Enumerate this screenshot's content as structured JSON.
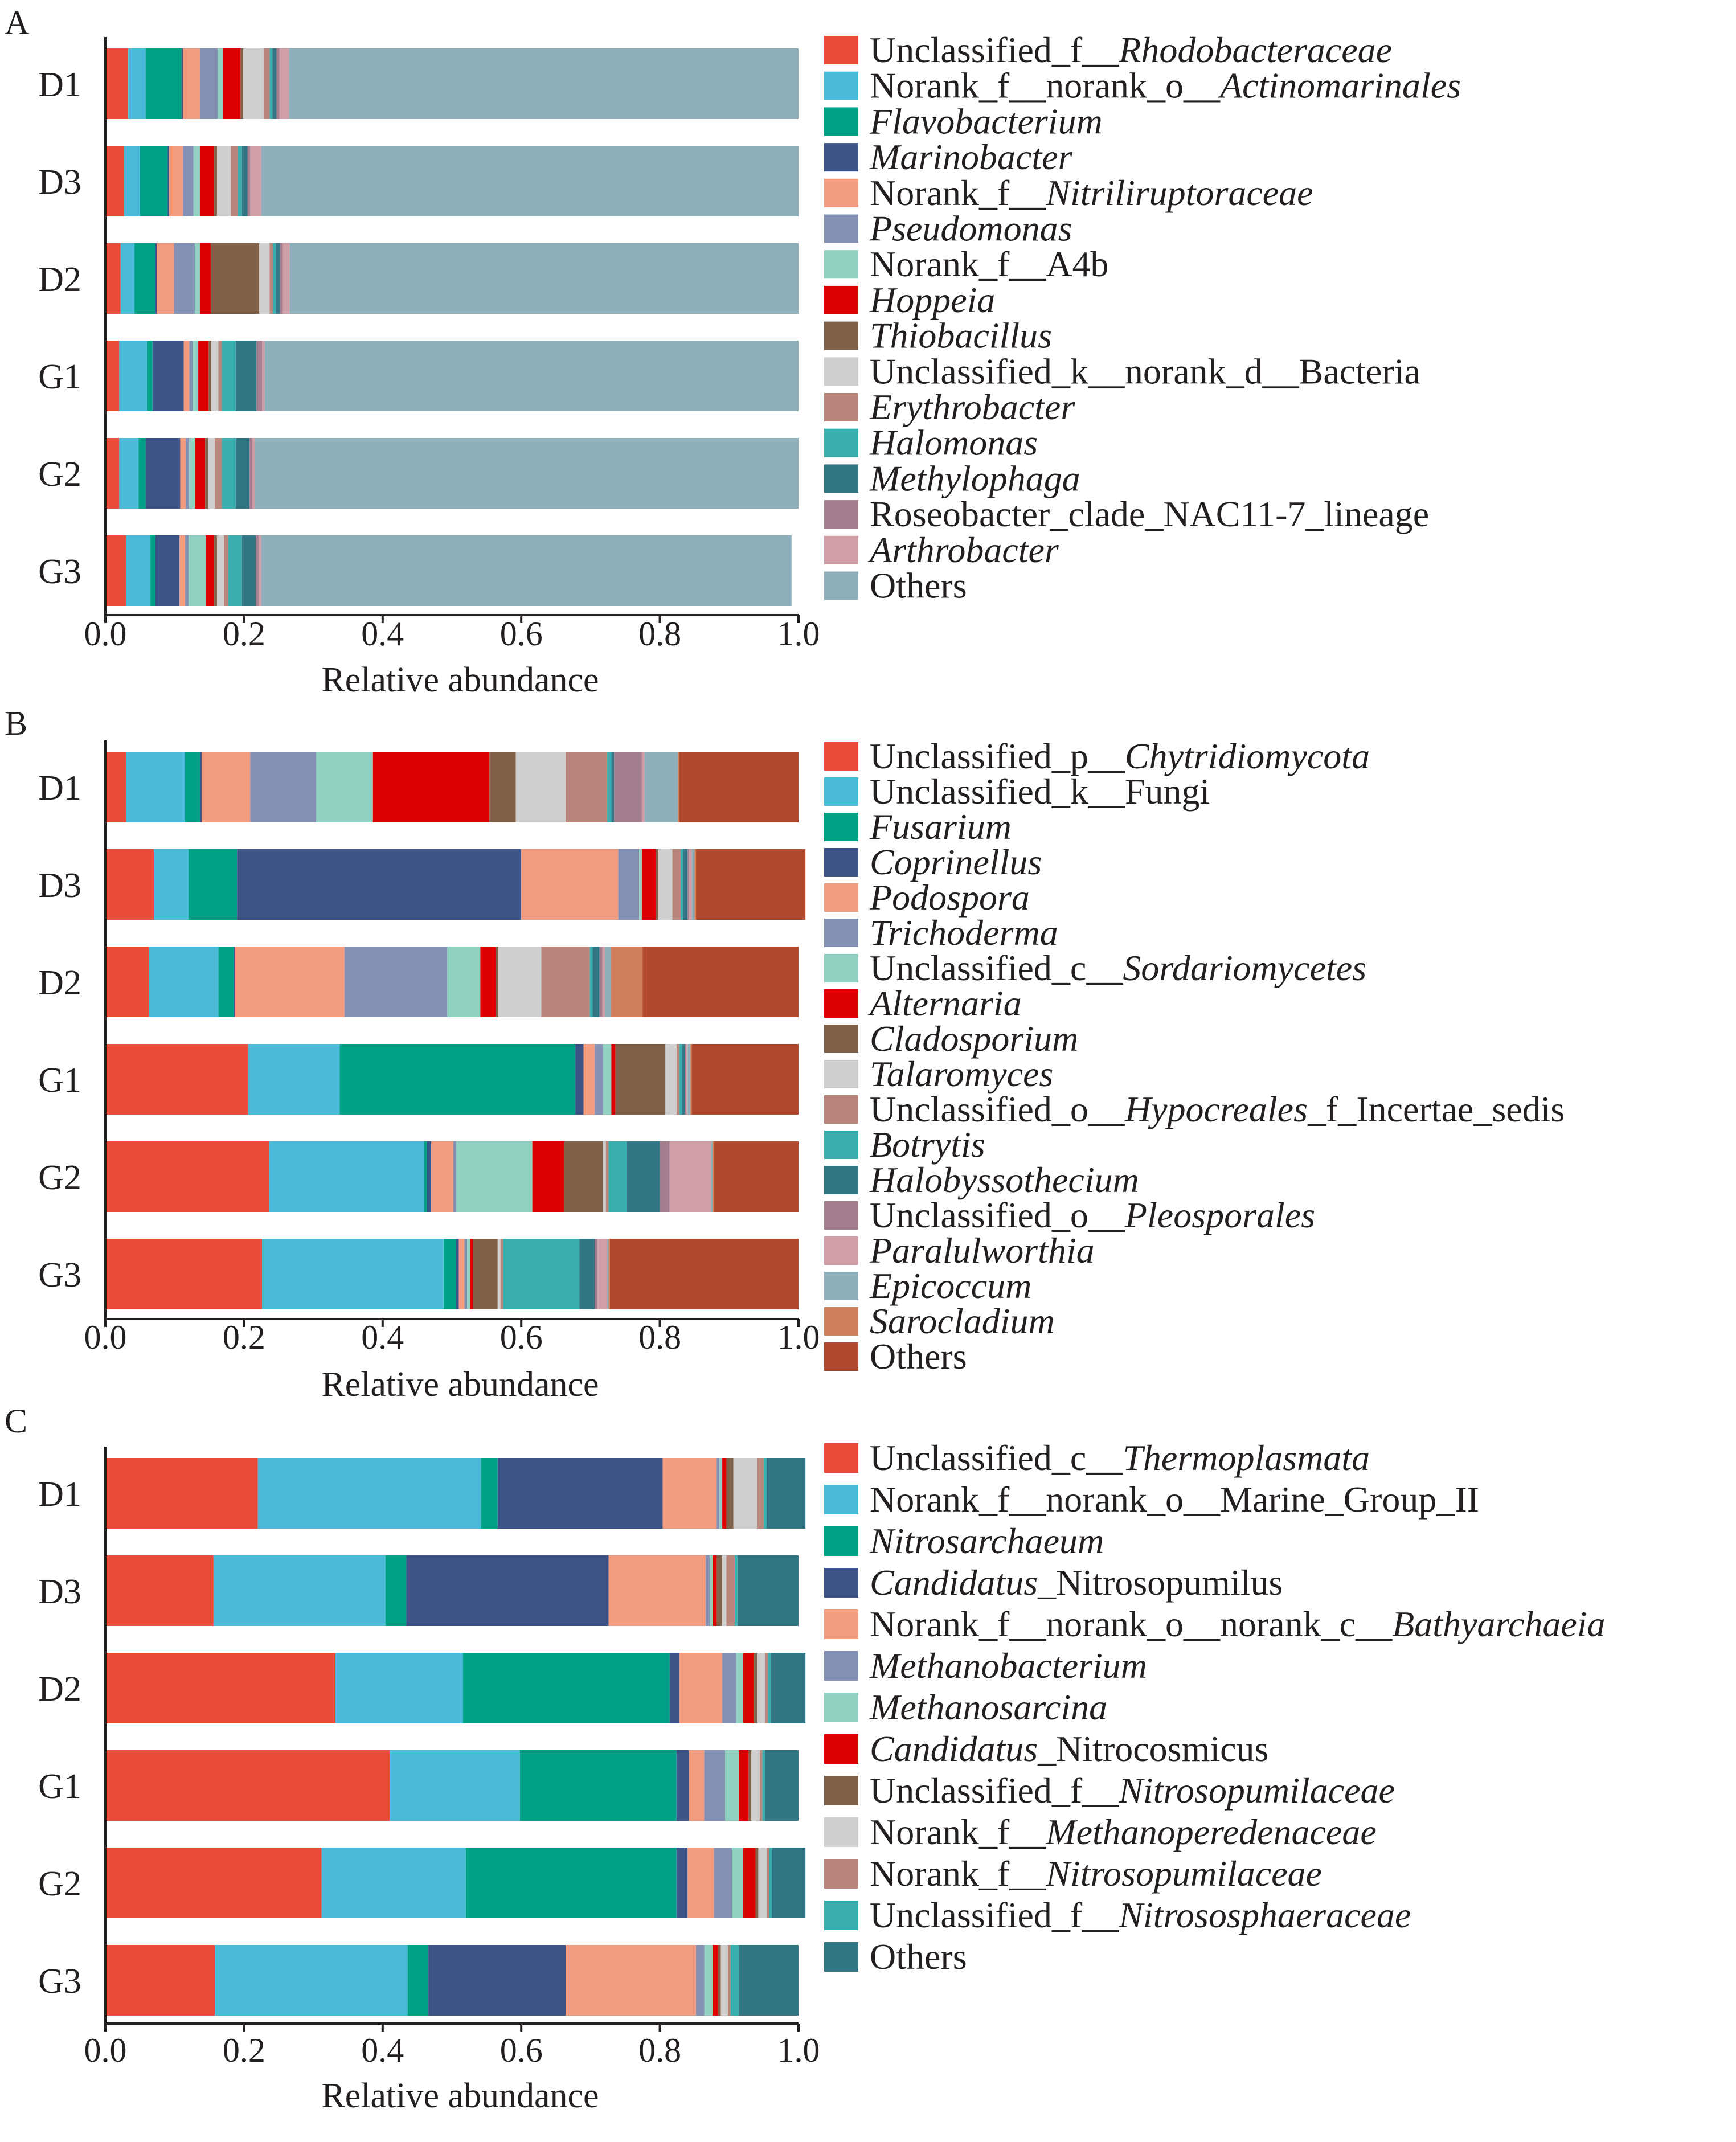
{
  "figure": {
    "xlabel": "Relative abundance",
    "ticks": [
      "0.0",
      "0.2",
      "0.4",
      "0.6",
      "0.8",
      "1.0"
    ]
  },
  "chart_data": [
    {
      "panel": "A",
      "type": "bar",
      "orientation": "horizontal",
      "stacked": true,
      "xlabel": "Relative abundance",
      "xlim": [
        0,
        1
      ],
      "categories": [
        "D1",
        "D3",
        "D2",
        "G1",
        "G2",
        "G3"
      ],
      "legend_position": "right",
      "series": [
        {
          "name": [
            [
              "Unclassified_f__",
              false
            ],
            [
              "Rhodobacteraceae",
              true
            ]
          ],
          "color": "#e84b37",
          "values": [
            0.033,
            0.027,
            0.022,
            0.02,
            0.02,
            0.03
          ]
        },
        {
          "name": [
            [
              "Norank_f__norank_o__",
              false
            ],
            [
              "Actinomarinales",
              true
            ]
          ],
          "color": "#4bbad8",
          "values": [
            0.025,
            0.023,
            0.02,
            0.04,
            0.028,
            0.035
          ]
        },
        {
          "name": [
            [
              "Flavobacterium",
              true
            ]
          ],
          "color": "#00a087",
          "values": [
            0.052,
            0.04,
            0.03,
            0.008,
            0.01,
            0.007
          ]
        },
        {
          "name": [
            [
              "Marinobacter",
              true
            ]
          ],
          "color": "#3c5488",
          "values": [
            0.002,
            0.002,
            0.002,
            0.045,
            0.05,
            0.035
          ]
        },
        {
          "name": [
            [
              "Norank_f__",
              false
            ],
            [
              "Nitriliruptoraceae",
              true
            ]
          ],
          "color": "#f39b7f",
          "values": [
            0.025,
            0.02,
            0.025,
            0.008,
            0.008,
            0.008
          ]
        },
        {
          "name": [
            [
              "Pseudomonas",
              true
            ]
          ],
          "color": "#8491b4",
          "values": [
            0.025,
            0.015,
            0.03,
            0.005,
            0.005,
            0.005
          ]
        },
        {
          "name": [
            [
              "Norank_f__A4b",
              false
            ]
          ],
          "color": "#91d1c2",
          "values": [
            0.008,
            0.01,
            0.008,
            0.008,
            0.008,
            0.025
          ]
        },
        {
          "name": [
            [
              "Hoppeia",
              true
            ]
          ],
          "color": "#dc0000",
          "values": [
            0.025,
            0.02,
            0.015,
            0.015,
            0.015,
            0.012
          ]
        },
        {
          "name": [
            [
              "Thiobacillus",
              true
            ]
          ],
          "color": "#7e6148",
          "values": [
            0.004,
            0.004,
            0.07,
            0.004,
            0.004,
            0.004
          ]
        },
        {
          "name": [
            [
              "Unclassified_k__norank_d__Bacteria",
              false
            ]
          ],
          "color": "#cfcfcf",
          "values": [
            0.03,
            0.02,
            0.015,
            0.01,
            0.01,
            0.01
          ]
        },
        {
          "name": [
            [
              "Erythrobacter",
              true
            ]
          ],
          "color": "#b9867c",
          "values": [
            0.008,
            0.01,
            0.005,
            0.005,
            0.01,
            0.006
          ]
        },
        {
          "name": [
            [
              "Halomonas",
              true
            ]
          ],
          "color": "#38aeae",
          "values": [
            0.004,
            0.006,
            0.004,
            0.02,
            0.02,
            0.02
          ]
        },
        {
          "name": [
            [
              "Methylophaga",
              true
            ]
          ],
          "color": "#327685",
          "values": [
            0.006,
            0.008,
            0.006,
            0.03,
            0.02,
            0.02
          ]
        },
        {
          "name": [
            [
              "Roseobacter_clade_NAC11-7_lineage",
              false
            ]
          ],
          "color": "#a37e8f",
          "values": [
            0.004,
            0.004,
            0.004,
            0.008,
            0.004,
            0.004
          ]
        },
        {
          "name": [
            [
              "Arthrobacter",
              true
            ]
          ],
          "color": "#cf9ea6",
          "values": [
            0.014,
            0.016,
            0.01,
            0.004,
            0.004,
            0.004
          ]
        },
        {
          "name": [
            [
              "Others",
              false
            ]
          ],
          "color": "#8fb0bb",
          "values": [
            0.735,
            0.775,
            0.734,
            0.77,
            0.784,
            0.765
          ]
        }
      ]
    },
    {
      "panel": "B",
      "type": "bar",
      "orientation": "horizontal",
      "stacked": true,
      "xlabel": "Relative abundance",
      "xlim": [
        0,
        1
      ],
      "categories": [
        "D1",
        "D3",
        "D2",
        "G1",
        "G2",
        "G3"
      ],
      "legend_position": "right",
      "series": [
        {
          "name": [
            [
              "Unclassified_p__",
              false
            ],
            [
              "Chytridiomycota",
              true
            ]
          ],
          "color": "#e84b37",
          "values": [
            0.03,
            0.07,
            0.063,
            0.206,
            0.236,
            0.226
          ]
        },
        {
          "name": [
            [
              "Unclassified_k__Fungi",
              false
            ]
          ],
          "color": "#4bbad8",
          "values": [
            0.085,
            0.05,
            0.1,
            0.132,
            0.224,
            0.262
          ]
        },
        {
          "name": [
            [
              "Fusarium",
              true
            ]
          ],
          "color": "#00a087",
          "values": [
            0.022,
            0.07,
            0.022,
            0.34,
            0.004,
            0.018
          ]
        },
        {
          "name": [
            [
              "Coprinellus",
              true
            ]
          ],
          "color": "#3c5488",
          "values": [
            0.002,
            0.41,
            0.002,
            0.012,
            0.006,
            0.004
          ]
        },
        {
          "name": [
            [
              "Podospora",
              true
            ]
          ],
          "color": "#f39b7f",
          "values": [
            0.07,
            0.14,
            0.158,
            0.016,
            0.032,
            0.008
          ]
        },
        {
          "name": [
            [
              "Trichoderma",
              true
            ]
          ],
          "color": "#8491b4",
          "values": [
            0.095,
            0.03,
            0.148,
            0.012,
            0.004,
            0.004
          ]
        },
        {
          "name": [
            [
              "Unclassified_c__",
              false
            ],
            [
              "Sordariomycetes",
              true
            ]
          ],
          "color": "#91d1c2",
          "values": [
            0.082,
            0.004,
            0.048,
            0.012,
            0.11,
            0.004
          ]
        },
        {
          "name": [
            [
              "Alternaria",
              true
            ]
          ],
          "color": "#dc0000",
          "values": [
            0.168,
            0.02,
            0.022,
            0.006,
            0.046,
            0.004
          ]
        },
        {
          "name": [
            [
              "Cladosporium",
              true
            ]
          ],
          "color": "#7e6148",
          "values": [
            0.038,
            0.004,
            0.004,
            0.072,
            0.056,
            0.036
          ]
        },
        {
          "name": [
            [
              "Talaromyces",
              true
            ]
          ],
          "color": "#cfcfcf",
          "values": [
            0.072,
            0.02,
            0.062,
            0.016,
            0.004,
            0.004
          ]
        },
        {
          "name": [
            [
              "Unclassified_o__",
              false
            ],
            [
              "Hypocreales",
              true
            ],
            [
              "_f_Incertae_sedis",
              false
            ]
          ],
          "color": "#b9867c",
          "values": [
            0.06,
            0.012,
            0.07,
            0.004,
            0.004,
            0.004
          ]
        },
        {
          "name": [
            [
              "Botrytis",
              true
            ]
          ],
          "color": "#38aeae",
          "values": [
            0.006,
            0.004,
            0.004,
            0.004,
            0.026,
            0.11
          ]
        },
        {
          "name": [
            [
              "Halobyssothecium",
              true
            ]
          ],
          "color": "#327685",
          "values": [
            0.004,
            0.006,
            0.01,
            0.004,
            0.048,
            0.022
          ]
        },
        {
          "name": [
            [
              "Unclassified_o__",
              false
            ],
            [
              "Pleosporales",
              true
            ]
          ],
          "color": "#a37e8f",
          "values": [
            0.04,
            0.002,
            0.004,
            0.002,
            0.014,
            0.004
          ]
        },
        {
          "name": [
            [
              "Paralulworthia",
              true
            ]
          ],
          "color": "#cf9ea6",
          "values": [
            0.004,
            0.004,
            0.004,
            0.002,
            0.06,
            0.014
          ]
        },
        {
          "name": [
            [
              "Epicoccum",
              true
            ]
          ],
          "color": "#8fb0bb",
          "values": [
            0.048,
            0.004,
            0.008,
            0.004,
            0.002,
            0.002
          ]
        },
        {
          "name": [
            [
              "Sarocladium",
              true
            ]
          ],
          "color": "#d0805c",
          "values": [
            0.002,
            0.002,
            0.046,
            0.002,
            0.002,
            0.002
          ]
        },
        {
          "name": [
            [
              "Others",
              false
            ]
          ],
          "color": "#b1492e",
          "values": [
            0.172,
            0.158,
            0.225,
            0.154,
            0.122,
            0.272
          ]
        }
      ]
    },
    {
      "panel": "C",
      "type": "bar",
      "orientation": "horizontal",
      "stacked": true,
      "xlabel": "Relative abundance",
      "xlim": [
        0,
        1
      ],
      "categories": [
        "D1",
        "D3",
        "D2",
        "G1",
        "G2",
        "G3"
      ],
      "legend_position": "right",
      "series": [
        {
          "name": [
            [
              "Unclassified_c__",
              false
            ],
            [
              "Thermoplasmata",
              true
            ]
          ],
          "color": "#e84b37",
          "values": [
            0.22,
            0.156,
            0.332,
            0.41,
            0.312,
            0.158
          ]
        },
        {
          "name": [
            [
              "Norank_f__norank_o__Marine_Group_II",
              false
            ]
          ],
          "color": "#4bbad8",
          "values": [
            0.322,
            0.248,
            0.184,
            0.188,
            0.208,
            0.278
          ]
        },
        {
          "name": [
            [
              "Nitrosarchaeum",
              true
            ]
          ],
          "color": "#00a087",
          "values": [
            0.024,
            0.03,
            0.298,
            0.226,
            0.304,
            0.03
          ]
        },
        {
          "name": [
            [
              "Candidatus",
              true
            ],
            [
              "_Nitrosopumilus",
              false
            ]
          ],
          "color": "#3c5488",
          "values": [
            0.238,
            0.292,
            0.014,
            0.018,
            0.016,
            0.198
          ]
        },
        {
          "name": [
            [
              "Norank_f__norank_o__norank_c__",
              false
            ],
            [
              "Bathyarchaeia",
              true
            ]
          ],
          "color": "#f39b7f",
          "values": [
            0.078,
            0.14,
            0.062,
            0.022,
            0.038,
            0.188
          ]
        },
        {
          "name": [
            [
              "Methanobacterium",
              true
            ]
          ],
          "color": "#8491b4",
          "values": [
            0.004,
            0.006,
            0.02,
            0.03,
            0.026,
            0.012
          ]
        },
        {
          "name": [
            [
              "Methanosarcina",
              true
            ]
          ],
          "color": "#91d1c2",
          "values": [
            0.004,
            0.004,
            0.01,
            0.02,
            0.016,
            0.012
          ]
        },
        {
          "name": [
            [
              "Candidatus",
              true
            ],
            [
              "_Nitrocosmicus",
              false
            ]
          ],
          "color": "#dc0000",
          "values": [
            0.006,
            0.006,
            0.016,
            0.014,
            0.018,
            0.008
          ]
        },
        {
          "name": [
            [
              "Unclassified_f__",
              false
            ],
            [
              "Nitrosopumilaceae",
              true
            ]
          ],
          "color": "#7e6148",
          "values": [
            0.01,
            0.008,
            0.004,
            0.004,
            0.004,
            0.004
          ]
        },
        {
          "name": [
            [
              "Norank_f__",
              false
            ],
            [
              "Methanoperedenaceae",
              true
            ]
          ],
          "color": "#cfcfcf",
          "values": [
            0.034,
            0.006,
            0.012,
            0.012,
            0.012,
            0.01
          ]
        },
        {
          "name": [
            [
              "Norank_f__",
              false
            ],
            [
              "Nitrosopumilaceae",
              true
            ]
          ],
          "color": "#b9867c",
          "values": [
            0.01,
            0.012,
            0.004,
            0.004,
            0.004,
            0.004
          ]
        },
        {
          "name": [
            [
              "Unclassified_f__",
              false
            ],
            [
              "Nitrososphaeraceae",
              true
            ]
          ],
          "color": "#38aeae",
          "values": [
            0.004,
            0.004,
            0.004,
            0.004,
            0.004,
            0.012
          ]
        },
        {
          "name": [
            [
              "Others",
              false
            ]
          ],
          "color": "#327685",
          "values": [
            0.056,
            0.088,
            0.05,
            0.048,
            0.048,
            0.086
          ]
        }
      ]
    }
  ]
}
